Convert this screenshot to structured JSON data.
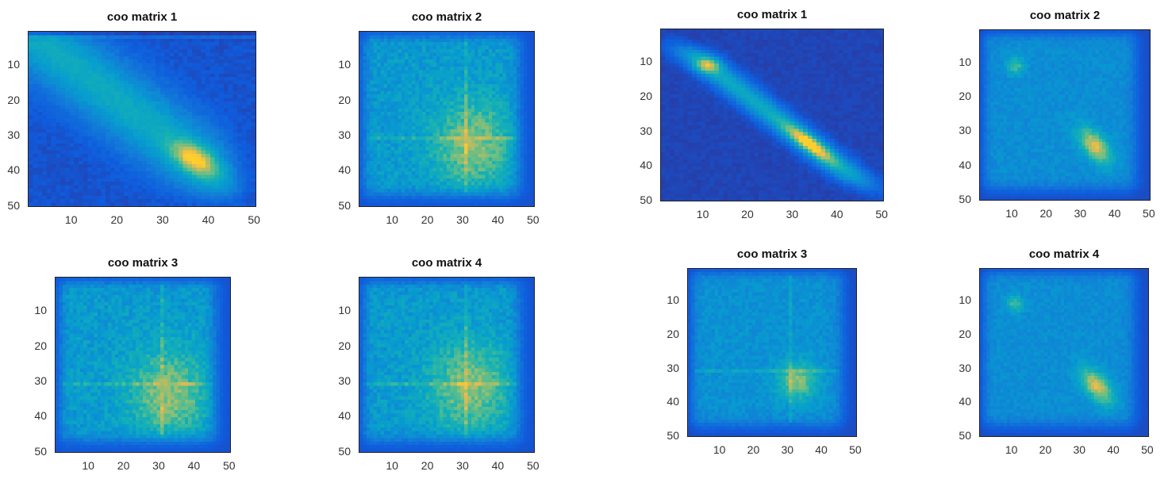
{
  "colormap": "parula",
  "chart_data": [
    {
      "id": "L1",
      "type": "heatmap",
      "title": "coo matrix 1",
      "x_ticks": [
        10,
        20,
        30,
        40,
        50
      ],
      "y_ticks": [
        10,
        20,
        30,
        40,
        50
      ],
      "xlim": [
        1,
        50
      ],
      "ylim": [
        1,
        50
      ],
      "y_reversed": true,
      "pattern": "diagonal-hotspot",
      "hotspot": [
        37,
        37
      ]
    },
    {
      "id": "L2",
      "type": "heatmap",
      "title": "coo matrix 2",
      "x_ticks": [
        10,
        20,
        30,
        40,
        50
      ],
      "y_ticks": [
        10,
        20,
        30,
        40,
        50
      ],
      "xlim": [
        1,
        50
      ],
      "ylim": [
        1,
        50
      ],
      "y_reversed": true,
      "pattern": "spread-square",
      "hotspot": [
        33,
        33
      ]
    },
    {
      "id": "L3",
      "type": "heatmap",
      "title": "coo matrix 3",
      "x_ticks": [
        10,
        20,
        30,
        40,
        50
      ],
      "y_ticks": [
        10,
        20,
        30,
        40,
        50
      ],
      "xlim": [
        1,
        50
      ],
      "ylim": [
        1,
        50
      ],
      "y_reversed": true,
      "pattern": "spread-square",
      "hotspot": [
        33,
        34
      ]
    },
    {
      "id": "L4",
      "type": "heatmap",
      "title": "coo matrix 4",
      "x_ticks": [
        10,
        20,
        30,
        40,
        50
      ],
      "y_ticks": [
        10,
        20,
        30,
        40,
        50
      ],
      "xlim": [
        1,
        50
      ],
      "ylim": [
        1,
        50
      ],
      "y_reversed": true,
      "pattern": "spread-square",
      "hotspot": [
        32,
        32
      ]
    },
    {
      "id": "R1",
      "type": "heatmap",
      "title": "coo matrix 1",
      "x_ticks": [
        10,
        20,
        30,
        40,
        50
      ],
      "y_ticks": [
        10,
        20,
        30,
        40,
        50
      ],
      "xlim": [
        1,
        50
      ],
      "ylim": [
        1,
        50
      ],
      "y_reversed": true,
      "pattern": "narrow-diagonal",
      "hotspot": [
        34,
        34
      ]
    },
    {
      "id": "R2",
      "type": "heatmap",
      "title": "coo matrix 2",
      "x_ticks": [
        10,
        20,
        30,
        40,
        50
      ],
      "y_ticks": [
        10,
        20,
        30,
        40,
        50
      ],
      "xlim": [
        1,
        50
      ],
      "ylim": [
        1,
        50
      ],
      "y_reversed": true,
      "pattern": "square-diagonal-hotspot",
      "hotspot": [
        34,
        35
      ]
    },
    {
      "id": "R3",
      "type": "heatmap",
      "title": "coo matrix 3",
      "x_ticks": [
        10,
        20,
        30,
        40,
        50
      ],
      "y_ticks": [
        10,
        20,
        30,
        40,
        50
      ],
      "xlim": [
        1,
        50
      ],
      "ylim": [
        1,
        50
      ],
      "y_reversed": true,
      "pattern": "square-hotspot",
      "hotspot": [
        33,
        34
      ]
    },
    {
      "id": "R4",
      "type": "heatmap",
      "title": "coo matrix 4",
      "x_ticks": [
        10,
        20,
        30,
        40,
        50
      ],
      "y_ticks": [
        10,
        20,
        30,
        40,
        50
      ],
      "xlim": [
        1,
        50
      ],
      "ylim": [
        1,
        50
      ],
      "y_reversed": true,
      "pattern": "square-diagonal-hotspot",
      "hotspot": [
        35,
        36
      ]
    }
  ]
}
